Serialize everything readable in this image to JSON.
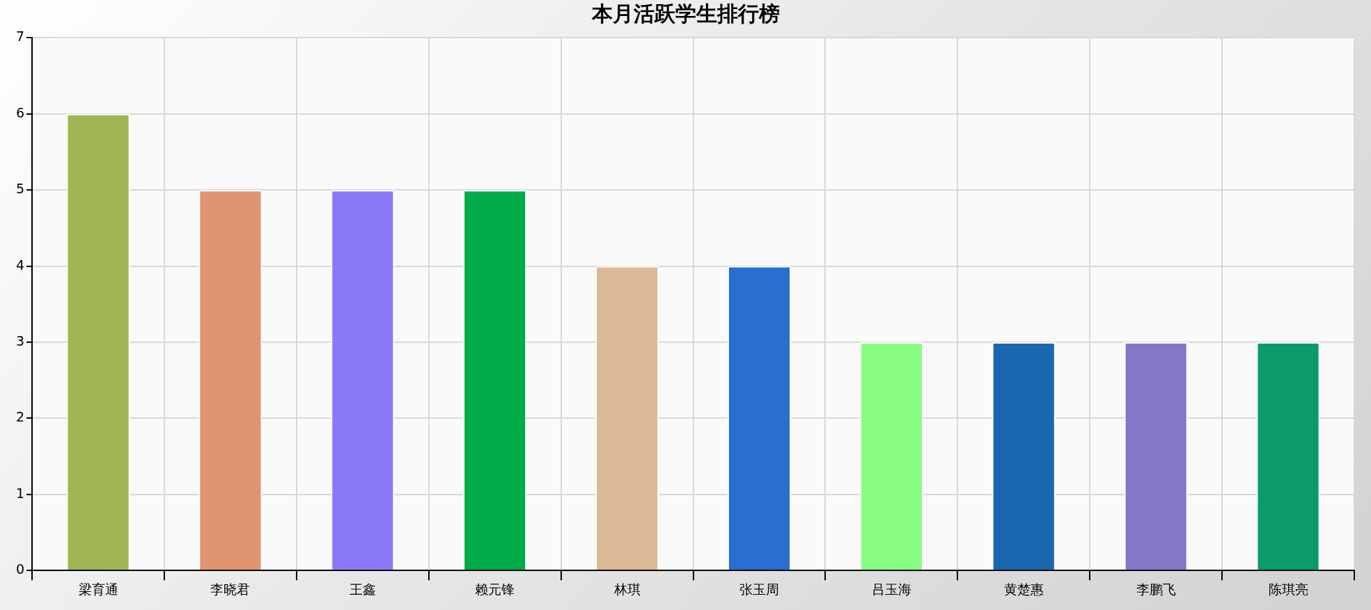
{
  "chart_data": {
    "type": "bar",
    "title": "本月活跃学生排行榜",
    "categories": [
      "梁育通",
      "李晓君",
      "王鑫",
      "赖元锋",
      "林琪",
      "张玉周",
      "吕玉海",
      "黄楚惠",
      "李鹏飞",
      "陈琪亮"
    ],
    "values": [
      6,
      5,
      5,
      5,
      4,
      4,
      3,
      3,
      3,
      3
    ],
    "colors": [
      "#a0b654",
      "#e09470",
      "#8b7af8",
      "#00ab4a",
      "#d9b996",
      "#296fcf",
      "#88fc80",
      "#1a67b0",
      "#8576c8",
      "#0b9a6c"
    ],
    "ylim": [
      0,
      7
    ],
    "yticks": [
      0,
      1,
      2,
      3,
      4,
      5,
      6,
      7
    ],
    "grid": true,
    "legend": false
  }
}
